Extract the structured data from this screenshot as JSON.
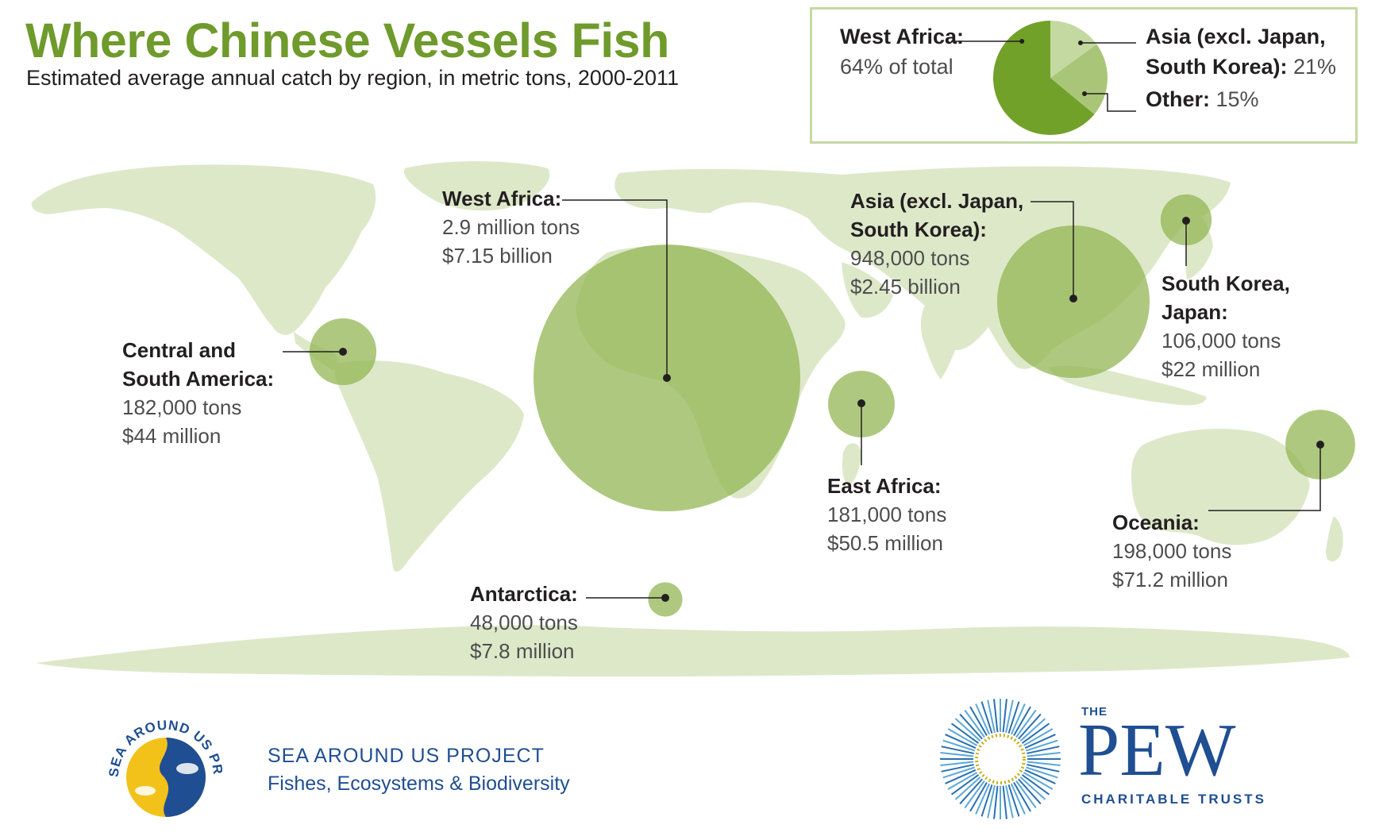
{
  "header": {
    "title": "Where Chinese Vessels Fish",
    "subtitle": "Estimated average annual catch by region, in metric tons, 2000-2011"
  },
  "colors": {
    "title_green": "#6f9a2c",
    "land": "#dde8c9",
    "bubble": "#8fb44e",
    "pie_dark": "#72a12a",
    "pie_mid": "#a9c678",
    "pie_light": "#c4d9a1",
    "pew_blue": "#1f4e92"
  },
  "chart_data": [
    {
      "type": "pie",
      "title": "",
      "slices": [
        {
          "label": "West Africa:",
          "value_text": "64% of total",
          "value": 64,
          "color": "#72a12a"
        },
        {
          "label": "Asia (excl. Japan, South Korea):",
          "label_lines": [
            "Asia (excl. Japan,",
            "South Korea):"
          ],
          "value_text": "21%",
          "value": 21,
          "color": "#a9c678"
        },
        {
          "label": "Other:",
          "value_text": "15%",
          "value": 15,
          "color": "#c4d9a1"
        }
      ]
    },
    {
      "type": "scatter",
      "title": "Where Chinese Vessels Fish",
      "encoding": "bubble map; bubble area proportional to catch",
      "unit": "metric tons",
      "regions": [
        {
          "name": "West Africa:",
          "name_lines": [
            "West Africa:"
          ],
          "tons": 2900000,
          "tons_text": "2.9 million tons",
          "value_text": "$7.15 billion"
        },
        {
          "name": "Asia (excl. Japan, South Korea):",
          "name_lines": [
            "Asia (excl. Japan,",
            "South Korea):"
          ],
          "tons": 948000,
          "tons_text": "948,000 tons",
          "value_text": "$2.45 billion"
        },
        {
          "name": "Oceania:",
          "name_lines": [
            "Oceania:"
          ],
          "tons": 198000,
          "tons_text": "198,000 tons",
          "value_text": "$71.2 million"
        },
        {
          "name": "Central and South America:",
          "name_lines": [
            "Central and",
            "South America:"
          ],
          "tons": 182000,
          "tons_text": "182,000 tons",
          "value_text": "$44 million"
        },
        {
          "name": "East Africa:",
          "name_lines": [
            "East Africa:"
          ],
          "tons": 181000,
          "tons_text": "181,000 tons",
          "value_text": "$50.5 million"
        },
        {
          "name": "South Korea, Japan:",
          "name_lines": [
            "South Korea,",
            "Japan:"
          ],
          "tons": 106000,
          "tons_text": "106,000 tons",
          "value_text": "$22 million"
        },
        {
          "name": "Antarctica:",
          "name_lines": [
            "Antarctica:"
          ],
          "tons": 48000,
          "tons_text": "48,000 tons",
          "value_text": "$7.8 million"
        }
      ]
    }
  ],
  "footer": {
    "seaaround": {
      "badge_text": "SEA AROUND US PROJECT",
      "line1": "SEA AROUND US PROJECT",
      "line2": "Fishes, Ecosystems & Biodiversity"
    },
    "pew": {
      "the": "THE",
      "name": "PEW",
      "sub": "CHARITABLE TRUSTS"
    }
  }
}
